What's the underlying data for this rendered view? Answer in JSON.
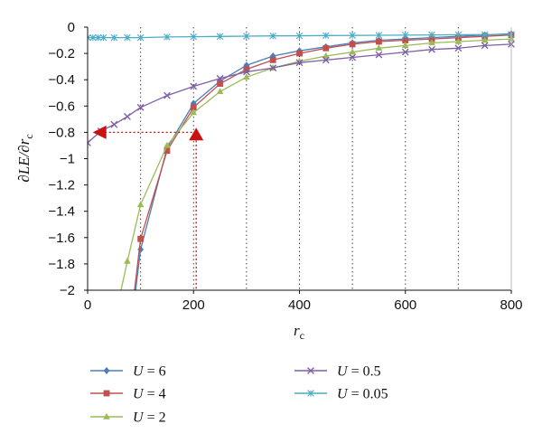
{
  "chart_data": {
    "type": "line",
    "xlabel": "r",
    "xlabel_sub": "c",
    "ylabel": "∂LE/∂r",
    "ylabel_sub": "c",
    "xlim": [
      0,
      800
    ],
    "ylim": [
      -2,
      0
    ],
    "xticks": [
      0,
      200,
      400,
      600,
      800
    ],
    "yticks": [
      0,
      -0.2,
      -0.4,
      -0.6,
      -0.8,
      -1,
      -1.2,
      -1.4,
      -1.6,
      -1.8,
      -2
    ],
    "xtick_labels": [
      "0",
      "200",
      "400",
      "600",
      "800"
    ],
    "ytick_labels": [
      "0",
      "−0.2",
      "−0.4",
      "−0.6",
      "−0.8",
      "−1",
      "−1.2",
      "−1.4",
      "−1.6",
      "−1.8",
      "−2"
    ],
    "vertical_dotted_gridlines_x": [
      100,
      200,
      300,
      400,
      500,
      600,
      700
    ],
    "legend_position": "bottom",
    "series": [
      {
        "name": "U = 6",
        "legend_var": "U",
        "legend_value": "= 6",
        "color": "#4a7ebb",
        "marker": "diamond",
        "points": [
          [
            90,
            -2.02
          ],
          [
            100,
            -1.69
          ],
          [
            150,
            -0.92
          ],
          [
            200,
            -0.58
          ],
          [
            250,
            -0.41
          ],
          [
            300,
            -0.29
          ],
          [
            350,
            -0.22
          ],
          [
            400,
            -0.18
          ],
          [
            450,
            -0.15
          ],
          [
            500,
            -0.12
          ],
          [
            550,
            -0.1
          ],
          [
            600,
            -0.09
          ],
          [
            650,
            -0.08
          ],
          [
            700,
            -0.07
          ],
          [
            750,
            -0.06
          ],
          [
            800,
            -0.05
          ]
        ]
      },
      {
        "name": "U = 4",
        "legend_var": "U",
        "legend_value": "= 4",
        "color": "#c0504d",
        "marker": "square",
        "points": [
          [
            88,
            -2.02
          ],
          [
            100,
            -1.61
          ],
          [
            150,
            -0.94
          ],
          [
            200,
            -0.61
          ],
          [
            250,
            -0.43
          ],
          [
            300,
            -0.32
          ],
          [
            350,
            -0.25
          ],
          [
            400,
            -0.2
          ],
          [
            450,
            -0.16
          ],
          [
            500,
            -0.13
          ],
          [
            550,
            -0.11
          ],
          [
            600,
            -0.1
          ],
          [
            650,
            -0.09
          ],
          [
            700,
            -0.08
          ],
          [
            750,
            -0.07
          ],
          [
            800,
            -0.06
          ]
        ]
      },
      {
        "name": "U = 2",
        "legend_var": "U",
        "legend_value": "= 2",
        "color": "#9bbb59",
        "marker": "triangle",
        "points": [
          [
            62,
            -2.02
          ],
          [
            75,
            -1.78
          ],
          [
            100,
            -1.35
          ],
          [
            150,
            -0.9
          ],
          [
            200,
            -0.65
          ],
          [
            250,
            -0.49
          ],
          [
            300,
            -0.38
          ],
          [
            350,
            -0.31
          ],
          [
            400,
            -0.26
          ],
          [
            450,
            -0.22
          ],
          [
            500,
            -0.19
          ],
          [
            550,
            -0.16
          ],
          [
            600,
            -0.14
          ],
          [
            650,
            -0.12
          ],
          [
            700,
            -0.11
          ],
          [
            750,
            -0.1
          ],
          [
            800,
            -0.09
          ]
        ]
      },
      {
        "name": "U = 0.5",
        "legend_var": "U",
        "legend_value": "= 0.5",
        "color": "#7f5fa6",
        "marker": "x",
        "points": [
          [
            0,
            -0.88
          ],
          [
            25,
            -0.79
          ],
          [
            50,
            -0.74
          ],
          [
            75,
            -0.68
          ],
          [
            100,
            -0.61
          ],
          [
            150,
            -0.52
          ],
          [
            200,
            -0.45
          ],
          [
            250,
            -0.39
          ],
          [
            300,
            -0.34
          ],
          [
            350,
            -0.31
          ],
          [
            400,
            -0.27
          ],
          [
            450,
            -0.25
          ],
          [
            500,
            -0.23
          ],
          [
            550,
            -0.21
          ],
          [
            600,
            -0.19
          ],
          [
            650,
            -0.17
          ],
          [
            700,
            -0.16
          ],
          [
            750,
            -0.14
          ],
          [
            800,
            -0.13
          ]
        ]
      },
      {
        "name": "U = 0.05",
        "legend_var": "U",
        "legend_value": "= 0.05",
        "color": "#4bacc6",
        "marker": "asterisk",
        "points": [
          [
            0,
            -0.08
          ],
          [
            10,
            -0.08
          ],
          [
            20,
            -0.08
          ],
          [
            30,
            -0.08
          ],
          [
            50,
            -0.08
          ],
          [
            75,
            -0.08
          ],
          [
            100,
            -0.08
          ],
          [
            150,
            -0.075
          ],
          [
            200,
            -0.073
          ],
          [
            250,
            -0.071
          ],
          [
            300,
            -0.069
          ],
          [
            350,
            -0.067
          ],
          [
            400,
            -0.066
          ],
          [
            450,
            -0.064
          ],
          [
            500,
            -0.063
          ],
          [
            550,
            -0.062
          ],
          [
            600,
            -0.061
          ],
          [
            650,
            -0.059
          ],
          [
            700,
            -0.058
          ],
          [
            750,
            -0.057
          ],
          [
            800,
            -0.056
          ]
        ]
      }
    ],
    "annotations": {
      "color": "#cc1111",
      "triangle_up": [
        205,
        -0.82
      ],
      "triangle_left": [
        25,
        -0.8
      ],
      "dotted_horizontal": [
        [
          25,
          -0.8
        ],
        [
          205,
          -0.8
        ]
      ],
      "dotted_vertical": [
        [
          205,
          -0.8
        ],
        [
          205,
          -2
        ]
      ]
    }
  }
}
